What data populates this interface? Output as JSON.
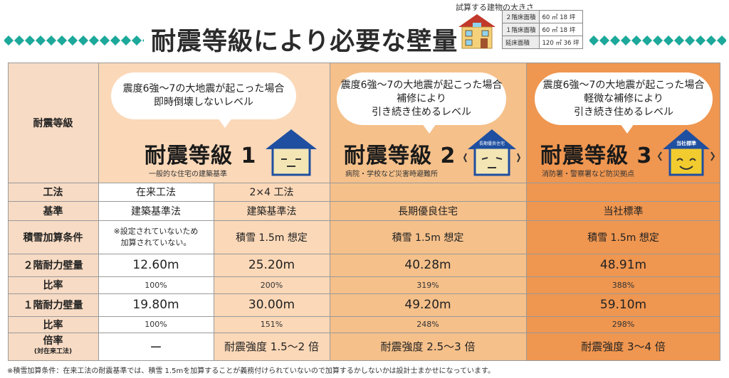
{
  "header": {
    "title": "耐震等級により必要な壁量",
    "size_caption": "試算する建物の大きさ",
    "size_rows": [
      {
        "label": "２階床面積",
        "value": "60 ㎡ 18 坪"
      },
      {
        "label": "１階床面積",
        "value": "60 ㎡ 18 坪"
      },
      {
        "label": "延床面積",
        "value": "120 ㎡ 36 坪"
      }
    ]
  },
  "columns": {
    "header_label": "耐震等級",
    "grade1": {
      "bubble": [
        "震度6強〜7の大地震が起こった場合",
        "即時倒壊しないレベル"
      ],
      "title": "耐震等級 1",
      "sub": "一般的な住宅の建築基準"
    },
    "grade2": {
      "bubble": [
        "震度6強〜7の大地震が起こった場合",
        "補修により",
        "引き続き住めるレベル"
      ],
      "title": "耐震等級 2",
      "sub": "病院・学校など災害時避難所",
      "house_badge": "長期優良住宅"
    },
    "grade3": {
      "bubble": [
        "震度6強〜7の大地震が起こった場合",
        "軽微な補修により",
        "引き続き住めるレベル"
      ],
      "title": "耐震等級 3",
      "sub": "消防署・警察署など防災拠点",
      "house_badge": "当社標準"
    }
  },
  "rows": {
    "method": {
      "label": "工法",
      "values": [
        "在来工法",
        "2×4 工法",
        "",
        ""
      ]
    },
    "standard": {
      "label": "基準",
      "values": [
        "建築基準法",
        "建築基準法",
        "長期優良住宅",
        "当社標準"
      ]
    },
    "snow": {
      "label": "積雪加算条件",
      "note": [
        "※設定されていないため",
        "加算されていない。"
      ],
      "values": [
        "積雪 1.5m 想定",
        "積雪 1.5m 想定",
        "積雪 1.5m 想定"
      ]
    },
    "wall2f": {
      "label": "２階耐力壁量",
      "values": [
        "12.60m",
        "25.20m",
        "40.28m",
        "48.91m"
      ]
    },
    "ratio2f": {
      "label": "比率",
      "values": [
        "100%",
        "200%",
        "319%",
        "388%"
      ]
    },
    "wall1f": {
      "label": "１階耐力壁量",
      "values": [
        "19.80m",
        "30.00m",
        "49.20m",
        "59.10m"
      ]
    },
    "ratio1f": {
      "label": "比率",
      "values": [
        "100%",
        "151%",
        "248%",
        "298%"
      ]
    },
    "multiple": {
      "label": "倍率",
      "sublabel": "(対在来工法)",
      "values": [
        "ー",
        "耐震強度 1.5〜2 倍",
        "耐震強度 2.5〜3 倍",
        "耐震強度 3〜4 倍"
      ]
    }
  },
  "footnote": "※積雪加算条件：在来工法の耐震基準では、積雪 1.5mを加算することが義務付けられていないので加算するかしないかは設計士まかせになっています。",
  "colors": {
    "label_bg": "#f7dbc4",
    "col1_bg": "#ffffff",
    "col2_bg": "#fbd8b8",
    "col3_bg": "#f5c08a",
    "col4_bg": "#ef9650",
    "diamond": "#1ca89a",
    "house_blue": "#1f4fa0"
  },
  "icons": [
    "house-calm-icon",
    "house-shaking-icon",
    "house-smiling-icon",
    "building-icon"
  ]
}
